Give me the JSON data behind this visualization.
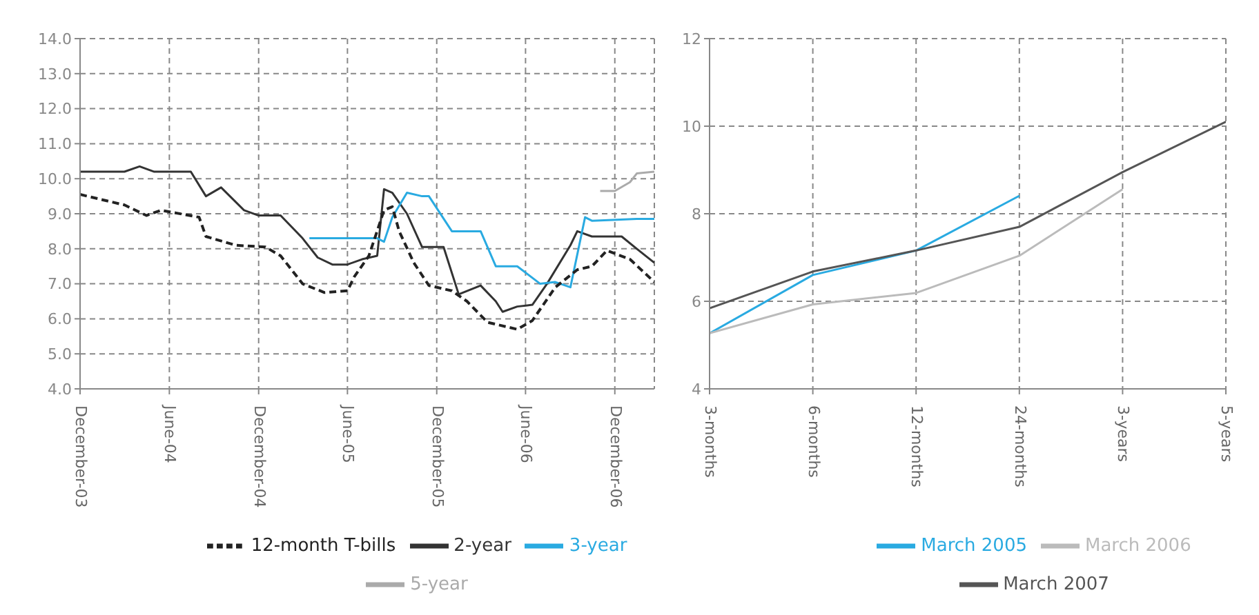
{
  "chart_data": [
    {
      "type": "line",
      "xlim": [
        "2003-12-01",
        "2007-02-20"
      ],
      "xticks": [
        {
          "value": "2003-12-01",
          "label": "December-03"
        },
        {
          "value": "2004-06-01",
          "label": "June-04"
        },
        {
          "value": "2004-12-01",
          "label": "December-04"
        },
        {
          "value": "2005-06-01",
          "label": "June-05"
        },
        {
          "value": "2005-12-01",
          "label": "December-05"
        },
        {
          "value": "2006-06-01",
          "label": "June-06"
        },
        {
          "value": "2006-12-01",
          "label": "December-06"
        }
      ],
      "ylim": [
        4,
        14
      ],
      "yticks": [
        {
          "value": 4,
          "label": "4.0"
        },
        {
          "value": 5,
          "label": "5.0"
        },
        {
          "value": 6,
          "label": "6.0"
        },
        {
          "value": 7,
          "label": "7.0"
        },
        {
          "value": 8,
          "label": "8.0"
        },
        {
          "value": 9,
          "label": "9.0"
        },
        {
          "value": 10,
          "label": "10.0"
        },
        {
          "value": 11,
          "label": "11.0"
        },
        {
          "value": 12,
          "label": "12.0"
        },
        {
          "value": 13,
          "label": "13.0"
        },
        {
          "value": 14,
          "label": "14.0"
        }
      ],
      "grid": true,
      "legend": "bottom",
      "series": [
        {
          "name": "2-year",
          "color": "#333333",
          "x": [
            "2003-12-01",
            "2004-03-01",
            "2004-04-01",
            "2004-05-01",
            "2004-07-15",
            "2004-08-15",
            "2004-09-15",
            "2004-11-01",
            "2004-12-01",
            "2005-01-15",
            "2005-03-01",
            "2005-04-01",
            "2005-05-01",
            "2005-06-01",
            "2005-07-01",
            "2005-08-01",
            "2005-08-15",
            "2005-09-01",
            "2005-10-01",
            "2005-11-01",
            "2005-12-15",
            "2006-01-15",
            "2006-03-01",
            "2006-04-01",
            "2006-04-15",
            "2006-05-15",
            "2006-06-15",
            "2006-07-15",
            "2006-09-01",
            "2006-09-15",
            "2006-10-15",
            "2006-12-15",
            "2007-01-15",
            "2007-02-20"
          ],
          "values": [
            10.2,
            10.2,
            10.35,
            10.2,
            10.2,
            9.5,
            9.75,
            9.1,
            8.95,
            8.95,
            8.3,
            7.75,
            7.55,
            7.55,
            7.7,
            7.8,
            9.7,
            9.6,
            9.0,
            8.05,
            8.05,
            6.7,
            6.95,
            6.5,
            6.2,
            6.35,
            6.4,
            7.0,
            8.1,
            8.5,
            8.35,
            8.35,
            8.0,
            7.6
          ]
        },
        {
          "name": "3-year",
          "color": "#29aae1",
          "x": [
            "2005-03-15",
            "2005-08-01",
            "2005-08-15",
            "2005-09-01",
            "2005-10-01",
            "2005-11-01",
            "2005-11-15",
            "2006-01-01",
            "2006-03-01",
            "2006-04-01",
            "2006-05-15",
            "2006-07-01",
            "2006-08-01",
            "2006-09-01",
            "2006-10-01",
            "2006-10-15",
            "2007-01-15",
            "2007-02-20"
          ],
          "values": [
            8.3,
            8.3,
            8.2,
            8.9,
            9.6,
            9.5,
            9.5,
            8.5,
            8.5,
            7.5,
            7.5,
            7.0,
            7.05,
            6.9,
            8.9,
            8.8,
            8.85,
            8.85
          ]
        },
        {
          "name": "5-year",
          "color": "#aaaaaa",
          "x": [
            "2006-11-01",
            "2006-12-01",
            "2007-01-01",
            "2007-01-15",
            "2007-02-20"
          ],
          "values": [
            9.65,
            9.65,
            9.9,
            10.15,
            10.2
          ]
        },
        {
          "name": "12-month T-bills",
          "color": "#222222",
          "line_style": "dashed",
          "x": [
            "2003-12-01",
            "2004-03-01",
            "2004-04-15",
            "2004-05-15",
            "2004-08-01",
            "2004-08-15",
            "2004-10-15",
            "2004-12-15",
            "2005-01-15",
            "2005-03-01",
            "2005-04-15",
            "2005-06-01",
            "2005-06-15",
            "2005-07-15",
            "2005-08-15",
            "2005-09-01",
            "2005-09-15",
            "2005-10-15",
            "2005-11-15",
            "2006-01-01",
            "2006-02-01",
            "2006-03-15",
            "2006-05-15",
            "2006-06-15",
            "2006-08-01",
            "2006-09-15",
            "2006-10-15",
            "2006-11-15",
            "2007-01-01",
            "2007-02-20"
          ],
          "values": [
            9.55,
            9.25,
            8.95,
            9.1,
            8.9,
            8.35,
            8.1,
            8.05,
            7.8,
            7.0,
            6.75,
            6.8,
            7.2,
            7.8,
            9.1,
            9.2,
            8.5,
            7.6,
            6.95,
            6.8,
            6.5,
            5.9,
            5.7,
            5.95,
            6.9,
            7.4,
            7.5,
            7.95,
            7.7,
            7.05
          ]
        }
      ]
    },
    {
      "type": "line",
      "categories": [
        "3-months",
        "6-months",
        "12-months",
        "24-months",
        "3-years",
        "5-years"
      ],
      "ylim": [
        4,
        12
      ],
      "yticks": [
        4,
        6,
        8,
        10,
        12
      ],
      "grid": true,
      "legend": "bottom",
      "series": [
        {
          "name": "March 2005",
          "color": "#29aae1",
          "values": [
            5.27,
            6.6,
            7.16,
            8.41,
            null,
            null
          ]
        },
        {
          "name": "March 2006",
          "color": "#bbbbbb",
          "values": [
            5.27,
            5.93,
            6.19,
            7.04,
            8.56,
            null
          ]
        },
        {
          "name": "March 2007",
          "color": "#555555",
          "values": [
            5.84,
            6.68,
            7.16,
            7.7,
            8.95,
            10.1
          ]
        }
      ]
    }
  ]
}
